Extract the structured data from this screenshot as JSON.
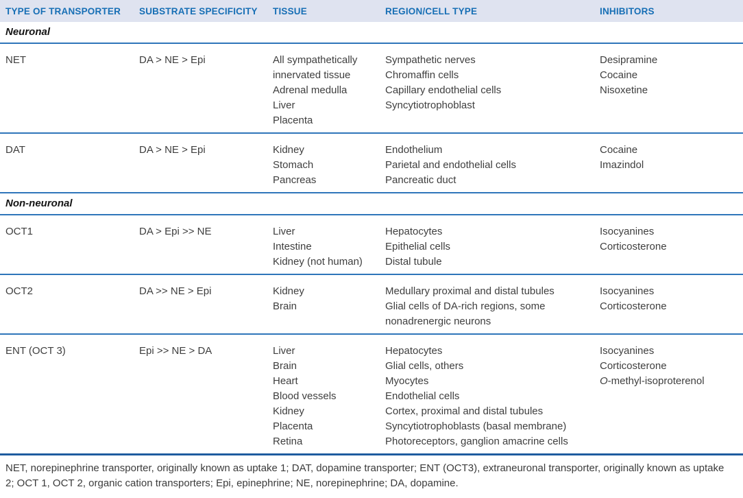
{
  "colors": {
    "header_text": "#176fb5",
    "header_background": "#dfe3f0",
    "rule_blue": "#2e75ba",
    "rule_dark_blue": "#1e5c9f",
    "body_text": "#3e3e3e"
  },
  "table": {
    "columns": [
      "TYPE OF TRANSPORTER",
      "SUBSTRATE SPECIFICITY",
      "TISSUE",
      "REGION/CELL TYPE",
      "INHIBITORS"
    ],
    "sections": [
      {
        "label": "Neuronal",
        "rows": [
          {
            "transporter": "NET",
            "substrate_specificity": "DA > NE > Epi",
            "tissue": [
              "All sympathetically innervated tissue",
              "Adrenal medulla",
              "Liver",
              "Placenta"
            ],
            "region_cell_type": [
              "Sympathetic nerves",
              "Chromaffin cells",
              "Capillary endothelial cells",
              "Syncytiotrophoblast"
            ],
            "inhibitors": [
              {
                "t": "Desipramine"
              },
              {
                "t": "Cocaine"
              },
              {
                "t": "Nisoxetine"
              }
            ]
          },
          {
            "transporter": "DAT",
            "substrate_specificity": "DA > NE > Epi",
            "tissue": [
              "Kidney",
              "Stomach",
              "Pancreas"
            ],
            "region_cell_type": [
              "Endothelium",
              "Parietal and endothelial cells",
              "Pancreatic duct"
            ],
            "inhibitors": [
              {
                "t": "Cocaine"
              },
              {
                "t": "Imazindol"
              }
            ]
          }
        ]
      },
      {
        "label": "Non-neuronal",
        "rows": [
          {
            "transporter": "OCT1",
            "substrate_specificity": "DA > Epi >> NE",
            "tissue": [
              "Liver",
              "Intestine",
              "Kidney (not human)"
            ],
            "region_cell_type": [
              "Hepatocytes",
              "Epithelial cells",
              "Distal tubule"
            ],
            "inhibitors": [
              {
                "t": "Isocyanines"
              },
              {
                "t": "Corticosterone"
              }
            ]
          },
          {
            "transporter": "OCT2",
            "substrate_specificity": "DA >> NE > Epi",
            "tissue": [
              "Kidney",
              "Brain"
            ],
            "region_cell_type": [
              "Medullary proximal and distal tubules",
              "Glial cells of DA-rich regions, some nonadrenergic neurons"
            ],
            "inhibitors": [
              {
                "t": "Isocyanines"
              },
              {
                "t": "Corticosterone"
              }
            ]
          },
          {
            "transporter": "ENT (OCT 3)",
            "substrate_specificity": "Epi >> NE > DA",
            "tissue": [
              "Liver",
              "Brain",
              "Heart",
              "Blood vessels",
              "Kidney",
              "Placenta",
              "Retina"
            ],
            "region_cell_type": [
              "Hepatocytes",
              "Glial cells, others",
              "Myocytes",
              "Endothelial cells",
              "Cortex, proximal and distal tubules",
              "Syncytiotrophoblasts (basal membrane)",
              "Photoreceptors, ganglion amacrine cells"
            ],
            "inhibitors": [
              {
                "t": "Isocyanines"
              },
              {
                "t": "Corticosterone"
              },
              {
                "i": "O",
                "t": "-methyl-isoproterenol"
              }
            ]
          }
        ]
      }
    ]
  },
  "footnote": "NET, norepinephrine transporter, originally known as uptake 1; DAT, dopamine transporter; ENT (OCT3), extraneuronal transporter, originally known as uptake 2; OCT 1, OCT 2, organic cation transporters; Epi, epinephrine; NE, norepinephrine; DA, dopamine."
}
